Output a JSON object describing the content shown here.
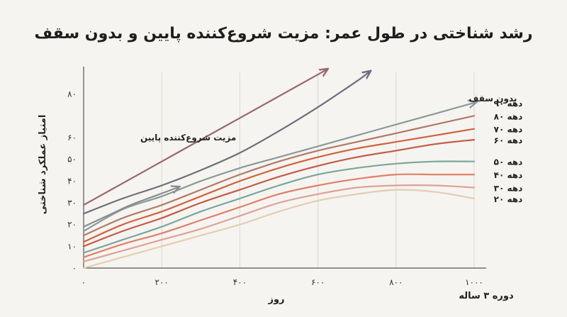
{
  "chart_data": {
    "type": "line",
    "title": "رشد شناختی در طول عمر: مزیت شروع‌کننده پایین و بدون سقف",
    "xlabel": "روز",
    "xlabel_secondary": "دوره ۳ ساله",
    "ylabel": "امتیاز عملکرد شناختی",
    "xlim": [
      0,
      1020
    ],
    "ylim": [
      0,
      90
    ],
    "x_ticks": [
      {
        "value": 0,
        "label": "۰"
      },
      {
        "value": 200,
        "label": "۲۰۰"
      },
      {
        "value": 400,
        "label": "۴۰۰"
      },
      {
        "value": 600,
        "label": "۶۰۰"
      },
      {
        "value": 800,
        "label": "۸۰۰"
      },
      {
        "value": 1000,
        "label": "۱۰۰۰"
      }
    ],
    "y_ticks": [
      {
        "value": 0,
        "label": "۰"
      },
      {
        "value": 10,
        "label": "۱۰"
      },
      {
        "value": 20,
        "label": "۲۰"
      },
      {
        "value": 30,
        "label": "۳۰"
      },
      {
        "value": 40,
        "label": "۴۰"
      },
      {
        "value": 50,
        "label": "۵۰"
      },
      {
        "value": 60,
        "label": "۶۰"
      },
      {
        "value": 80,
        "label": "۸۰"
      }
    ],
    "series": [
      {
        "name": "دهه ۹۰",
        "color": "#8a9a98",
        "arrow": true,
        "x": [
          0,
          100,
          200,
          300,
          400,
          500,
          600,
          700,
          800,
          900,
          1000
        ],
        "y": [
          17,
          27,
          33,
          40,
          46,
          51,
          56,
          61,
          66,
          71,
          76
        ]
      },
      {
        "name": "دهه ۸۰",
        "color": "#b07a68",
        "x": [
          0,
          100,
          200,
          300,
          400,
          500,
          600,
          700,
          800,
          900,
          1000
        ],
        "y": [
          15,
          23,
          29,
          36,
          43,
          49,
          54,
          58,
          62,
          66,
          70
        ]
      },
      {
        "name": "دهه ۷۰",
        "color": "#d0623e",
        "x": [
          0,
          100,
          200,
          300,
          400,
          500,
          600,
          700,
          800,
          900,
          1000
        ],
        "y": [
          12,
          20,
          26,
          33,
          40,
          46,
          51,
          55,
          58,
          61,
          64
        ]
      },
      {
        "name": "دهه ۶۰",
        "color": "#c45a48",
        "x": [
          0,
          100,
          200,
          300,
          400,
          500,
          600,
          700,
          800,
          900,
          1000
        ],
        "y": [
          10,
          17,
          23,
          30,
          36,
          42,
          47,
          51,
          54,
          57,
          59
        ]
      },
      {
        "name": "دهه ۵۰",
        "color": "#7aa69c",
        "x": [
          0,
          100,
          200,
          300,
          400,
          500,
          600,
          700,
          800,
          900,
          1000
        ],
        "y": [
          7,
          13,
          19,
          26,
          32,
          38,
          43,
          46,
          48,
          49,
          49
        ]
      },
      {
        "name": "دهه ۴۰",
        "color": "#e08068",
        "x": [
          0,
          100,
          200,
          300,
          400,
          500,
          600,
          700,
          800,
          900,
          1000
        ],
        "y": [
          5,
          11,
          16,
          22,
          28,
          34,
          38,
          41,
          43,
          43,
          43
        ]
      },
      {
        "name": "دهه ۳۰",
        "color": "#dda296",
        "x": [
          0,
          100,
          200,
          300,
          400,
          500,
          600,
          700,
          800,
          900,
          1000
        ],
        "y": [
          3,
          8,
          13,
          18,
          24,
          30,
          34,
          37,
          38,
          38,
          37
        ]
      },
      {
        "name": "دهه ۲۰",
        "color": "#e3cdb2",
        "x": [
          0,
          100,
          200,
          300,
          400,
          500,
          600,
          700,
          800,
          900,
          1000
        ],
        "y": [
          0,
          5,
          10,
          15,
          20,
          26,
          31,
          34,
          36,
          35,
          32
        ]
      },
      {
        "name": "",
        "color": "#9a6670",
        "arrow": true,
        "x": [
          0,
          100,
          200,
          300,
          400,
          500,
          600,
          620
        ],
        "y": [
          29,
          39,
          49,
          59,
          69,
          79,
          89,
          91
        ]
      },
      {
        "name": "",
        "color": "#6c6e79",
        "arrow": true,
        "x": [
          0,
          100,
          200,
          300,
          400,
          500,
          600,
          700,
          730
        ],
        "y": [
          25,
          32,
          38,
          45,
          53,
          63,
          74,
          86,
          90
        ]
      },
      {
        "name": "",
        "color": "#8a8c90",
        "arrow": true,
        "x": [
          0,
          60,
          120,
          180,
          240
        ],
        "y": [
          19,
          24,
          29,
          33,
          37
        ]
      }
    ],
    "annotations": [
      {
        "text": "مزیت شروع‌کننده پایین",
        "x": 150,
        "y": 60
      },
      {
        "text": "بدون سقف",
        "x": 930,
        "y": 78
      }
    ]
  }
}
